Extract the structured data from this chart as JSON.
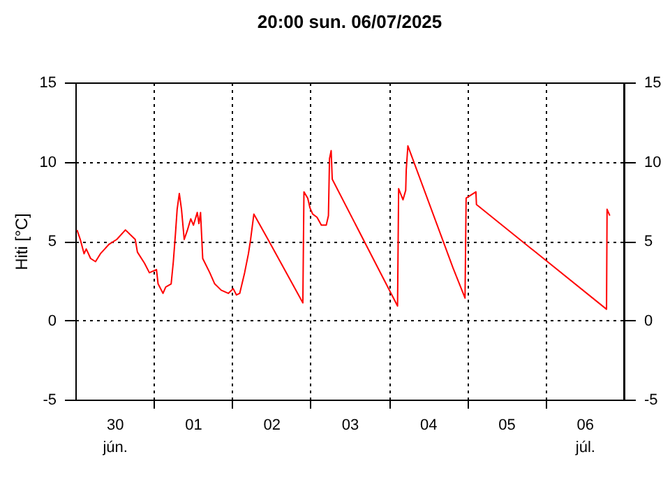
{
  "chart_data": {
    "type": "line",
    "title": "20:00   sun.  06/07/2025",
    "ylabel": "Hiti [°C]",
    "x": [
      "2025-06-30T00:30",
      "2025-06-30T01:30",
      "2025-06-30T02:40",
      "2025-06-30T03:20",
      "2025-06-30T04:40",
      "2025-06-30T06:10",
      "2025-06-30T07:40",
      "2025-06-30T09:00",
      "2025-06-30T10:20",
      "2025-06-30T12:40",
      "2025-06-30T15:20",
      "2025-06-30T16:50",
      "2025-06-30T18:20",
      "2025-06-30T19:00",
      "2025-06-30T21:10",
      "2025-06-30T22:40",
      "2025-07-01T00:50",
      "2025-07-01T01:20",
      "2025-07-01T02:50",
      "2025-07-01T03:40",
      "2025-07-01T05:20",
      "2025-07-01T06:00",
      "2025-07-01T06:40",
      "2025-07-01T07:10",
      "2025-07-01T07:50",
      "2025-07-01T08:30",
      "2025-07-01T09:20",
      "2025-07-01T10:20",
      "2025-07-01T11:20",
      "2025-07-01T12:10",
      "2025-07-01T13:20",
      "2025-07-01T13:50",
      "2025-07-01T14:20",
      "2025-07-01T15:00",
      "2025-07-01T17:10",
      "2025-07-01T18:40",
      "2025-07-01T20:40",
      "2025-07-01T22:50",
      "2025-07-02T00:20",
      "2025-07-02T01:20",
      "2025-07-02T02:20",
      "2025-07-02T03:50",
      "2025-07-02T05:00",
      "2025-07-02T05:40",
      "2025-07-02T06:40",
      "2025-07-02T11:00",
      "2025-07-02T21:40",
      "2025-07-02T22:00",
      "2025-07-02T23:10",
      "2025-07-02T23:50",
      "2025-07-03T00:40",
      "2025-07-03T02:00",
      "2025-07-03T03:20",
      "2025-07-03T04:50",
      "2025-07-03T05:30",
      "2025-07-03T05:50",
      "2025-07-03T06:20",
      "2025-07-03T06:40",
      "2025-07-04T02:40",
      "2025-07-04T02:50",
      "2025-07-04T03:00",
      "2025-07-04T04:20",
      "2025-07-04T05:10",
      "2025-07-04T05:20",
      "2025-07-04T05:50",
      "2025-07-04T19:40",
      "2025-07-04T23:20",
      "2025-07-04T23:40",
      "2025-07-05T01:10",
      "2025-07-05T02:40",
      "2025-07-05T02:50",
      "2025-07-06T18:40",
      "2025-07-06T18:50",
      "2025-07-06T19:40"
    ],
    "series": [
      {
        "color": "#ff0000",
        "values": [
          5.7,
          5.1,
          4.2,
          4.5,
          3.9,
          3.7,
          4.2,
          4.5,
          4.8,
          5.1,
          5.7,
          5.4,
          5.1,
          4.3,
          3.6,
          3.0,
          3.2,
          2.3,
          1.7,
          2.1,
          2.3,
          3.7,
          5.5,
          7.0,
          8.0,
          7.0,
          5.1,
          5.7,
          6.4,
          6.0,
          6.8,
          6.1,
          6.8,
          3.9,
          3.0,
          2.3,
          1.9,
          1.7,
          2.0,
          1.6,
          1.7,
          3.0,
          4.2,
          5.1,
          6.7,
          5.1,
          1.1,
          8.1,
          7.7,
          7.1,
          6.7,
          6.5,
          6.0,
          6.0,
          6.6,
          10.2,
          10.7,
          8.9,
          0.9,
          4.6,
          8.3,
          7.6,
          8.2,
          9.5,
          11.0,
          3.3,
          1.4,
          7.7,
          7.9,
          8.1,
          7.3,
          0.7,
          7.0,
          6.6
        ]
      }
    ],
    "xlim": [
      "2025-06-30T00:00",
      "2025-07-07T00:00"
    ],
    "xticks": [
      {
        "value": "2025-06-30T12:00",
        "label": "30\njún."
      },
      {
        "value": "2025-07-01T00:00",
        "label": null
      },
      {
        "value": "2025-07-01T12:00",
        "label": "01"
      },
      {
        "value": "2025-07-02T00:00",
        "label": null
      },
      {
        "value": "2025-07-02T12:00",
        "label": "02"
      },
      {
        "value": "2025-07-03T00:00",
        "label": null
      },
      {
        "value": "2025-07-03T12:00",
        "label": "03"
      },
      {
        "value": "2025-07-04T00:00",
        "label": null
      },
      {
        "value": "2025-07-04T12:00",
        "label": "04"
      },
      {
        "value": "2025-07-05T00:00",
        "label": null
      },
      {
        "value": "2025-07-05T12:00",
        "label": "05"
      },
      {
        "value": "2025-07-06T00:00",
        "label": null
      },
      {
        "value": "2025-07-06T12:00",
        "label": "06\njúl."
      }
    ],
    "ylim": [
      -5,
      15
    ],
    "yticks": [
      -5,
      0,
      5,
      10,
      15
    ],
    "y2lim": [
      -5,
      15
    ],
    "y2ticks": [
      -5,
      0,
      5,
      10,
      15
    ],
    "grid": true,
    "line_style": "solid"
  }
}
